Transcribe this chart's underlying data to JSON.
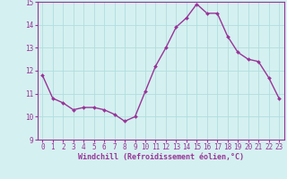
{
  "x": [
    0,
    1,
    2,
    3,
    4,
    5,
    6,
    7,
    8,
    9,
    10,
    11,
    12,
    13,
    14,
    15,
    16,
    17,
    18,
    19,
    20,
    21,
    22,
    23
  ],
  "y": [
    11.8,
    10.8,
    10.6,
    10.3,
    10.4,
    10.4,
    10.3,
    10.1,
    9.8,
    10.0,
    11.1,
    12.2,
    13.0,
    13.9,
    14.3,
    14.9,
    14.5,
    14.5,
    13.5,
    12.8,
    12.5,
    12.4,
    11.7,
    10.8
  ],
  "line_color": "#993399",
  "marker_color": "#993399",
  "bg_color": "#d5f0f0",
  "grid_color": "#b0dede",
  "xlabel": "Windchill (Refroidissement éolien,°C)",
  "ylim": [
    9,
    15
  ],
  "xlim_min": -0.5,
  "xlim_max": 23.5,
  "yticks": [
    9,
    10,
    11,
    12,
    13,
    14,
    15
  ],
  "xticks": [
    0,
    1,
    2,
    3,
    4,
    5,
    6,
    7,
    8,
    9,
    10,
    11,
    12,
    13,
    14,
    15,
    16,
    17,
    18,
    19,
    20,
    21,
    22,
    23
  ],
  "tick_label_fontsize": 5.5,
  "xlabel_fontsize": 6.0,
  "line_width": 1.0,
  "marker_size": 2.0
}
